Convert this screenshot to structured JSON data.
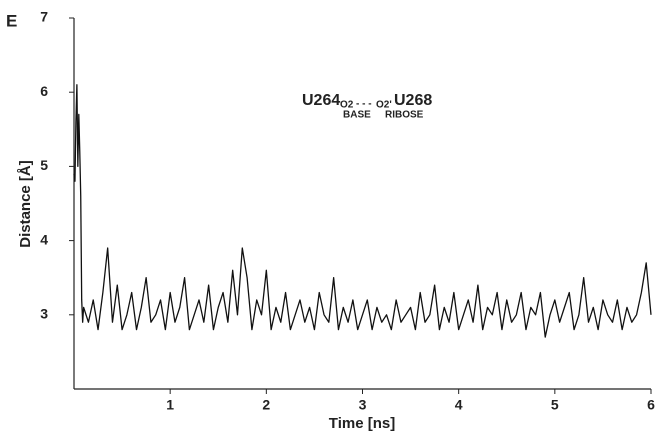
{
  "chart_data": {
    "type": "line",
    "panel_label": "E",
    "x_label": "Time [ns]",
    "y_label": "Distance [Å]",
    "annotation": {
      "donor": "U264",
      "donor_atom": "O2",
      "donor_group": "BASE",
      "bond": "- - -",
      "acceptor_atom": "O2'",
      "acceptor_group": "RIBOSE",
      "acceptor": "U268"
    },
    "x": [
      0,
      0.01,
      0.02,
      0.03,
      0.04,
      0.05,
      0.06,
      0.07,
      0.08,
      0.09,
      0.1,
      0.15,
      0.2,
      0.25,
      0.3,
      0.35,
      0.4,
      0.45,
      0.5,
      0.55,
      0.6,
      0.65,
      0.7,
      0.75,
      0.8,
      0.85,
      0.9,
      0.95,
      1.0,
      1.05,
      1.1,
      1.15,
      1.2,
      1.25,
      1.3,
      1.35,
      1.4,
      1.45,
      1.5,
      1.55,
      1.6,
      1.65,
      1.7,
      1.75,
      1.8,
      1.85,
      1.9,
      1.95,
      2.0,
      2.05,
      2.1,
      2.15,
      2.2,
      2.25,
      2.3,
      2.35,
      2.4,
      2.45,
      2.5,
      2.55,
      2.6,
      2.65,
      2.7,
      2.75,
      2.8,
      2.85,
      2.9,
      2.95,
      3.0,
      3.05,
      3.1,
      3.15,
      3.2,
      3.25,
      3.3,
      3.35,
      3.4,
      3.45,
      3.5,
      3.55,
      3.6,
      3.65,
      3.7,
      3.75,
      3.8,
      3.85,
      3.9,
      3.95,
      4.0,
      4.05,
      4.1,
      4.15,
      4.2,
      4.25,
      4.3,
      4.35,
      4.4,
      4.45,
      4.5,
      4.55,
      4.6,
      4.65,
      4.7,
      4.75,
      4.8,
      4.85,
      4.9,
      4.95,
      5.0,
      5.05,
      5.1,
      5.15,
      5.2,
      5.25,
      5.3,
      5.35,
      5.4,
      5.45,
      5.5,
      5.55,
      5.6,
      5.65,
      5.7,
      5.75,
      5.8,
      5.85,
      5.9,
      5.95,
      6.0
    ],
    "series": [
      {
        "color": "#111111",
        "values": [
          4.9,
          4.8,
          5.6,
          6.1,
          5.0,
          5.7,
          5.2,
          4.6,
          3.2,
          2.9,
          3.1,
          2.9,
          3.2,
          2.8,
          3.3,
          3.9,
          2.9,
          3.4,
          2.8,
          3.0,
          3.3,
          2.8,
          3.1,
          3.5,
          2.9,
          3.0,
          3.2,
          2.8,
          3.3,
          2.9,
          3.1,
          3.5,
          2.8,
          3.0,
          3.2,
          2.9,
          3.4,
          2.8,
          3.1,
          3.3,
          2.9,
          3.6,
          3.0,
          3.9,
          3.5,
          2.8,
          3.2,
          3.0,
          3.6,
          2.8,
          3.1,
          2.9,
          3.3,
          2.8,
          3.0,
          3.2,
          2.9,
          3.1,
          2.8,
          3.3,
          3.0,
          2.9,
          3.5,
          2.8,
          3.1,
          2.9,
          3.2,
          2.8,
          3.0,
          3.2,
          2.8,
          3.1,
          2.9,
          3.0,
          2.8,
          3.2,
          2.9,
          3.0,
          3.1,
          2.8,
          3.3,
          2.9,
          3.0,
          3.4,
          2.8,
          3.1,
          2.9,
          3.3,
          2.8,
          3.0,
          3.2,
          2.9,
          3.4,
          2.8,
          3.1,
          3.0,
          3.3,
          2.8,
          3.2,
          2.9,
          3.0,
          3.3,
          2.8,
          3.1,
          3.0,
          3.3,
          2.7,
          3.0,
          3.2,
          2.9,
          3.1,
          3.3,
          2.8,
          3.0,
          3.5,
          2.9,
          3.1,
          2.8,
          3.2,
          3.0,
          2.9,
          3.2,
          2.8,
          3.1,
          2.9,
          3.0,
          3.3,
          3.7,
          3.0
        ]
      }
    ],
    "xlim": [
      0,
      6
    ],
    "xticks": [
      1,
      2,
      3,
      4,
      5,
      6
    ],
    "ylim": [
      2,
      7
    ],
    "yticks": [
      3,
      4,
      5,
      6,
      7
    ],
    "grid": false
  }
}
